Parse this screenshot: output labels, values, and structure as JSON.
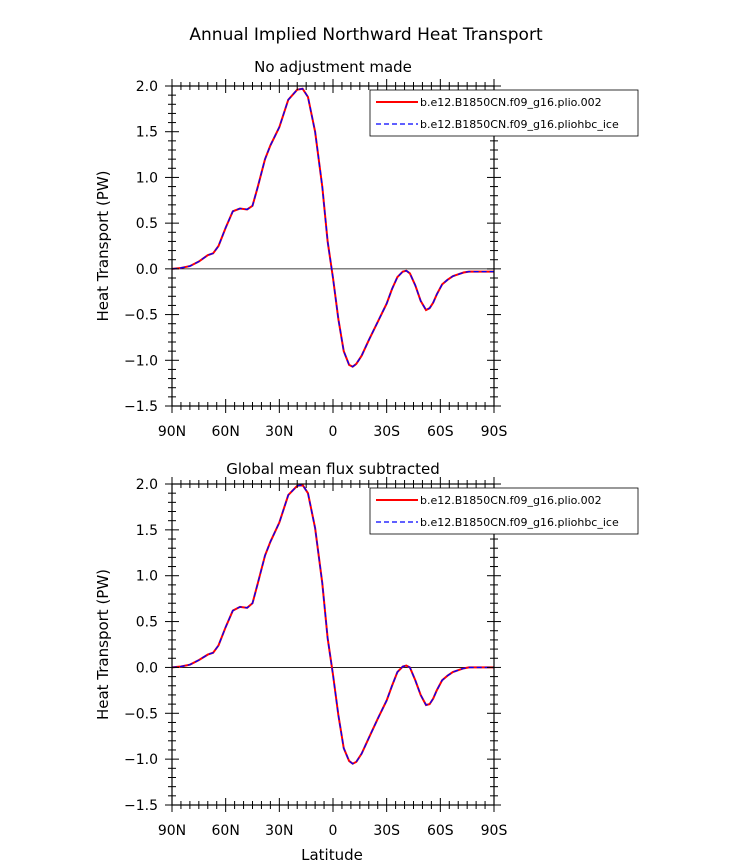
{
  "figure": {
    "title": "Annual Implied Northward Heat Transport",
    "xlabel": "Latitude"
  },
  "colors": {
    "series_1": "#ff0000",
    "series_2": "#0000ff",
    "axis": "#000000",
    "zero_line": "#000000"
  },
  "chart_data": [
    {
      "type": "line",
      "title": "No adjustment made",
      "xlabel": "",
      "ylabel": "Heat Transport (PW)",
      "xlim": [
        90,
        -90
      ],
      "ylim": [
        -1.5,
        2.0
      ],
      "x_ticks": [
        90,
        60,
        30,
        0,
        -30,
        -60,
        -90
      ],
      "x_tick_labels": [
        "90N",
        "60N",
        "30N",
        "0",
        "30S",
        "60S",
        "90S"
      ],
      "y_ticks": [
        2.0,
        1.5,
        1.0,
        0.5,
        0.0,
        -0.5,
        -1.0,
        -1.5
      ],
      "y_tick_labels": [
        "2.0",
        "1.5",
        "1.0",
        "0.5",
        "0.0",
        "−0.5",
        "−1.0",
        "−1.5"
      ],
      "grid": false,
      "zero_line": true,
      "legend_position": "top-right",
      "x": [
        90,
        85,
        80,
        75,
        70,
        67,
        64,
        60,
        56,
        52,
        48,
        45,
        42,
        38,
        35,
        30,
        25,
        20,
        17,
        14,
        10,
        6,
        3,
        0,
        -3,
        -6,
        -9,
        -11,
        -13,
        -16,
        -20,
        -25,
        -30,
        -33,
        -36,
        -39,
        -41,
        -43,
        -46,
        -49,
        -52,
        -54,
        -56,
        -58,
        -61,
        -64,
        -67,
        -70,
        -73,
        -76,
        -80,
        -85,
        -90
      ],
      "series": [
        {
          "name": "b.e12.B1850CN.f09_g16.plio.002",
          "color": "#ff0000",
          "dash": "solid",
          "values": [
            0.0,
            0.01,
            0.03,
            0.08,
            0.15,
            0.17,
            0.25,
            0.45,
            0.63,
            0.66,
            0.65,
            0.69,
            0.9,
            1.2,
            1.35,
            1.55,
            1.85,
            1.96,
            1.97,
            1.88,
            1.5,
            0.9,
            0.3,
            -0.1,
            -0.55,
            -0.9,
            -1.05,
            -1.07,
            -1.04,
            -0.95,
            -0.78,
            -0.58,
            -0.38,
            -0.22,
            -0.09,
            -0.03,
            -0.02,
            -0.05,
            -0.18,
            -0.35,
            -0.45,
            -0.43,
            -0.37,
            -0.28,
            -0.17,
            -0.12,
            -0.08,
            -0.06,
            -0.04,
            -0.03,
            -0.03,
            -0.03,
            -0.03
          ]
        },
        {
          "name": "b.e12.B1850CN.f09_g16.pliohbc_ice",
          "color": "#0000ff",
          "dash": "dashed",
          "values": [
            0.0,
            0.01,
            0.03,
            0.08,
            0.15,
            0.17,
            0.25,
            0.45,
            0.63,
            0.66,
            0.65,
            0.69,
            0.9,
            1.2,
            1.35,
            1.55,
            1.85,
            1.96,
            1.97,
            1.88,
            1.5,
            0.9,
            0.3,
            -0.1,
            -0.55,
            -0.9,
            -1.05,
            -1.07,
            -1.04,
            -0.95,
            -0.78,
            -0.58,
            -0.38,
            -0.22,
            -0.09,
            -0.03,
            -0.02,
            -0.05,
            -0.18,
            -0.35,
            -0.45,
            -0.43,
            -0.37,
            -0.28,
            -0.17,
            -0.12,
            -0.08,
            -0.06,
            -0.04,
            -0.03,
            -0.03,
            -0.03,
            -0.03
          ]
        }
      ]
    },
    {
      "type": "line",
      "title": "Global mean flux subtracted",
      "xlabel": "Latitude",
      "ylabel": "Heat Transport (PW)",
      "xlim": [
        90,
        -90
      ],
      "ylim": [
        -1.5,
        2.0
      ],
      "x_ticks": [
        90,
        60,
        30,
        0,
        -30,
        -60,
        -90
      ],
      "x_tick_labels": [
        "90N",
        "60N",
        "30N",
        "0",
        "30S",
        "60S",
        "90S"
      ],
      "y_ticks": [
        2.0,
        1.5,
        1.0,
        0.5,
        0.0,
        -0.5,
        -1.0,
        -1.5
      ],
      "y_tick_labels": [
        "2.0",
        "1.5",
        "1.0",
        "0.5",
        "0.0",
        "−0.5",
        "−1.0",
        "−1.5"
      ],
      "grid": false,
      "zero_line": true,
      "legend_position": "top-right",
      "x": [
        90,
        85,
        80,
        75,
        70,
        67,
        64,
        60,
        56,
        52,
        48,
        45,
        42,
        38,
        35,
        30,
        25,
        20,
        17,
        14,
        10,
        6,
        3,
        0,
        -3,
        -6,
        -9,
        -11,
        -13,
        -16,
        -20,
        -25,
        -30,
        -33,
        -36,
        -39,
        -41,
        -43,
        -46,
        -49,
        -52,
        -54,
        -56,
        -58,
        -61,
        -64,
        -67,
        -70,
        -73,
        -76,
        -80,
        -85,
        -90
      ],
      "series": [
        {
          "name": "b.e12.B1850CN.f09_g16.plio.002",
          "color": "#ff0000",
          "dash": "solid",
          "values": [
            0.0,
            0.01,
            0.03,
            0.08,
            0.14,
            0.16,
            0.24,
            0.44,
            0.62,
            0.66,
            0.65,
            0.7,
            0.92,
            1.22,
            1.37,
            1.58,
            1.88,
            1.98,
            1.99,
            1.9,
            1.52,
            0.92,
            0.32,
            -0.08,
            -0.52,
            -0.88,
            -1.02,
            -1.05,
            -1.03,
            -0.94,
            -0.77,
            -0.56,
            -0.36,
            -0.2,
            -0.05,
            0.01,
            0.02,
            0.0,
            -0.14,
            -0.3,
            -0.41,
            -0.4,
            -0.34,
            -0.25,
            -0.14,
            -0.09,
            -0.05,
            -0.03,
            -0.01,
            0.0,
            0.0,
            0.0,
            0.0
          ]
        },
        {
          "name": "b.e12.B1850CN.f09_g16.pliohbc_ice",
          "color": "#0000ff",
          "dash": "dashed",
          "values": [
            0.0,
            0.01,
            0.03,
            0.08,
            0.14,
            0.16,
            0.24,
            0.44,
            0.62,
            0.66,
            0.65,
            0.7,
            0.92,
            1.22,
            1.37,
            1.58,
            1.88,
            1.98,
            1.99,
            1.9,
            1.52,
            0.92,
            0.32,
            -0.08,
            -0.52,
            -0.88,
            -1.02,
            -1.05,
            -1.03,
            -0.94,
            -0.77,
            -0.56,
            -0.36,
            -0.2,
            -0.05,
            0.01,
            0.02,
            0.0,
            -0.14,
            -0.3,
            -0.41,
            -0.4,
            -0.34,
            -0.25,
            -0.14,
            -0.09,
            -0.05,
            -0.03,
            -0.01,
            0.0,
            0.0,
            0.0,
            0.0
          ]
        }
      ]
    }
  ]
}
